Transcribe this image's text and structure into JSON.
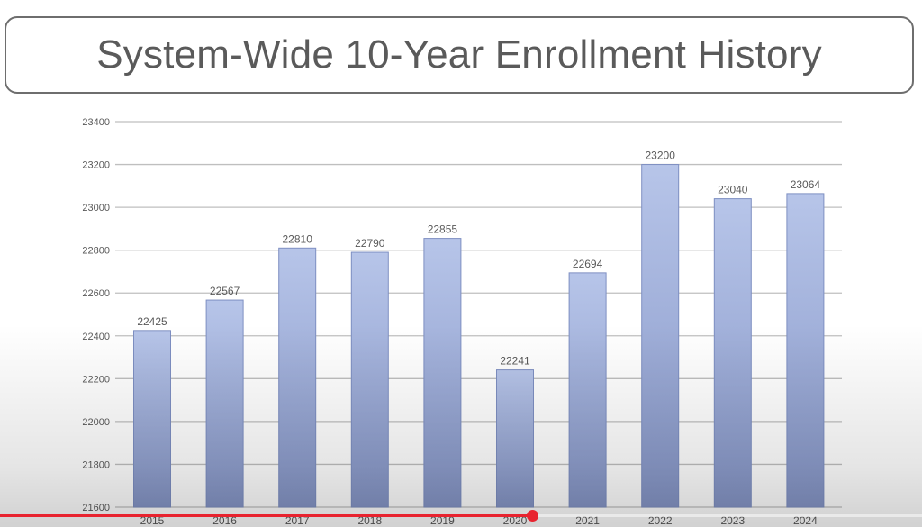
{
  "title": "System-Wide 10-Year Enrollment History",
  "colors": {
    "bar_top": "#b7c5e9",
    "bar_bottom": "#8696c7",
    "bar_stroke": "#7e8fc2",
    "grid": "#bfbfbf",
    "text": "#595959",
    "progress": "#e8232f"
  },
  "video": {
    "progress_percent": 57.7
  },
  "chart_data": {
    "type": "bar",
    "categories": [
      "2015",
      "2016",
      "2017",
      "2018",
      "2019",
      "2020",
      "2021",
      "2022",
      "2023",
      "2024"
    ],
    "values": [
      22425,
      22567,
      22810,
      22790,
      22855,
      22241,
      22694,
      23200,
      23040,
      23064
    ],
    "data_labels": [
      "22425",
      "22567",
      "22810",
      "22790",
      "22855",
      "22241",
      "22694",
      "23200",
      "23040",
      "23064"
    ],
    "y_ticks": [
      "21600",
      "21800",
      "22000",
      "22200",
      "22400",
      "22600",
      "22800",
      "23000",
      "23200",
      "23400"
    ],
    "ylim": [
      21600,
      23400
    ],
    "grid": true,
    "legend": "none"
  }
}
